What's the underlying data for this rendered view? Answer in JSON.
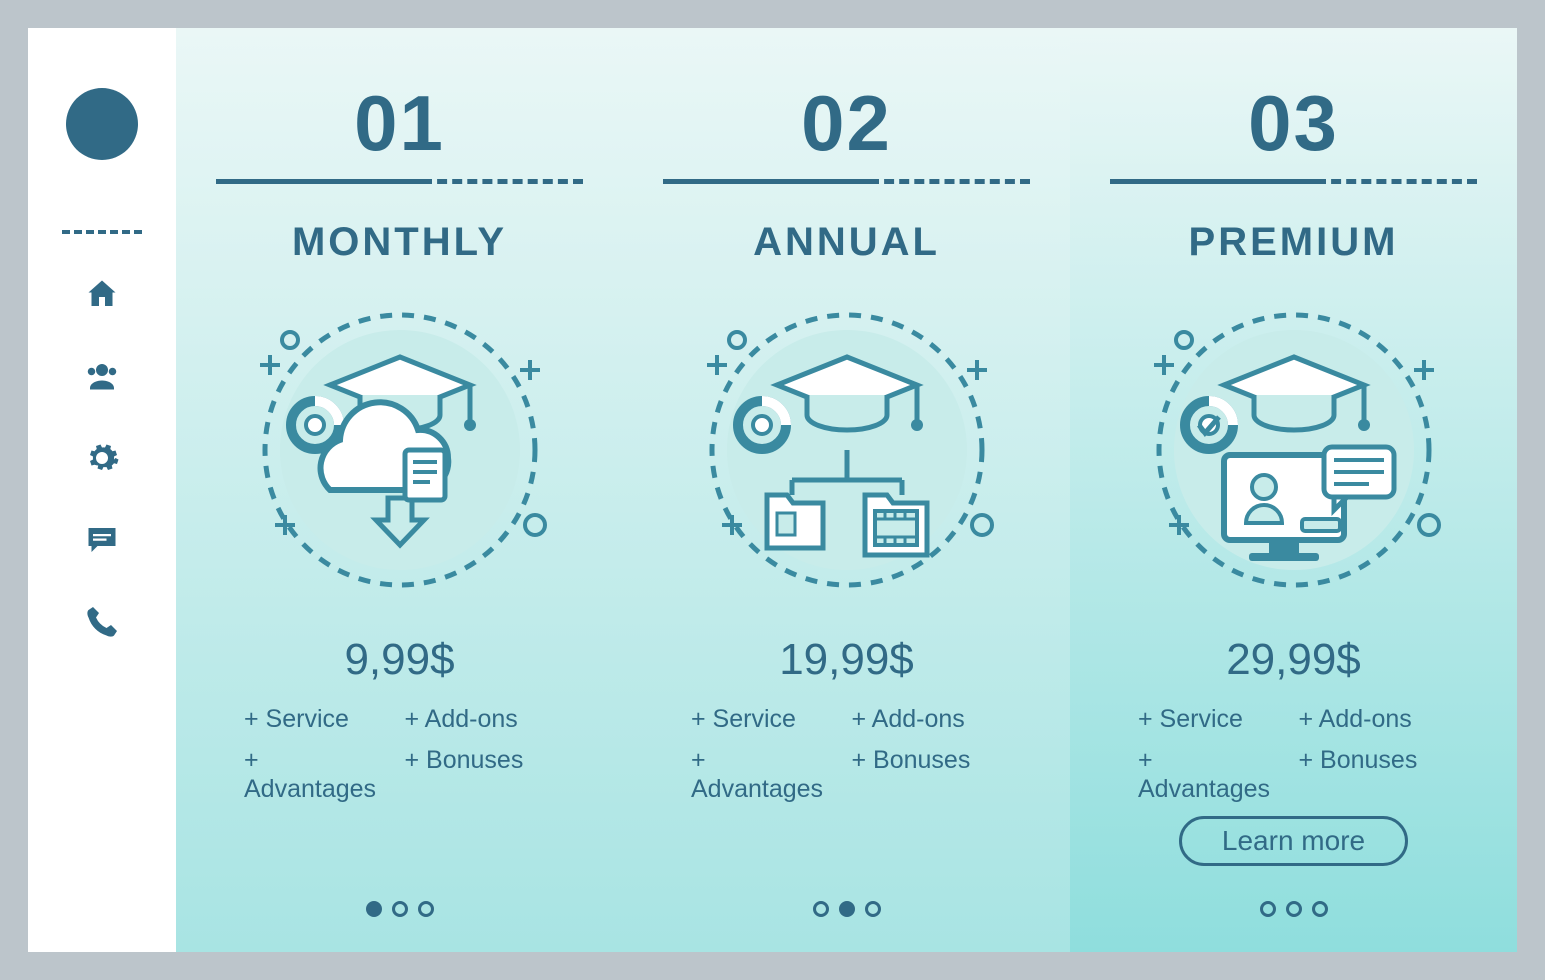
{
  "colors": {
    "page_bg": "#bcc5cb",
    "primary": "#316a86",
    "card_bg_top": "#eaf7f6",
    "card_bg_bottom": "#a8e4e3",
    "card_bg_bottom_prem": "#8fdedd",
    "icon_stroke": "#3a8aa0",
    "icon_fill": "#c8ecea",
    "white": "#ffffff"
  },
  "sidebar": {
    "icons": [
      "home",
      "users",
      "gear",
      "chat",
      "phone"
    ]
  },
  "cards": [
    {
      "number": "01",
      "title": "MONTHLY",
      "price": "9,99$",
      "features": [
        "Service",
        "Add-ons",
        "Advantages",
        "Bonuses"
      ],
      "active_dot": 0,
      "dot_count": 3,
      "illustration": "cloud",
      "learn_more": false
    },
    {
      "number": "02",
      "title": "ANNUAL",
      "price": "19,99$",
      "features": [
        "Service",
        "Add-ons",
        "Advantages",
        "Bonuses"
      ],
      "active_dot": 1,
      "dot_count": 3,
      "illustration": "folders",
      "learn_more": false
    },
    {
      "number": "03",
      "title": "PREMIUM",
      "price": "29,99$",
      "features": [
        "Service",
        "Add-ons",
        "Advantages",
        "Bonuses"
      ],
      "active_dot": -1,
      "dot_count": 3,
      "illustration": "monitor",
      "learn_more": true,
      "learn_label": "Learn more"
    }
  ]
}
